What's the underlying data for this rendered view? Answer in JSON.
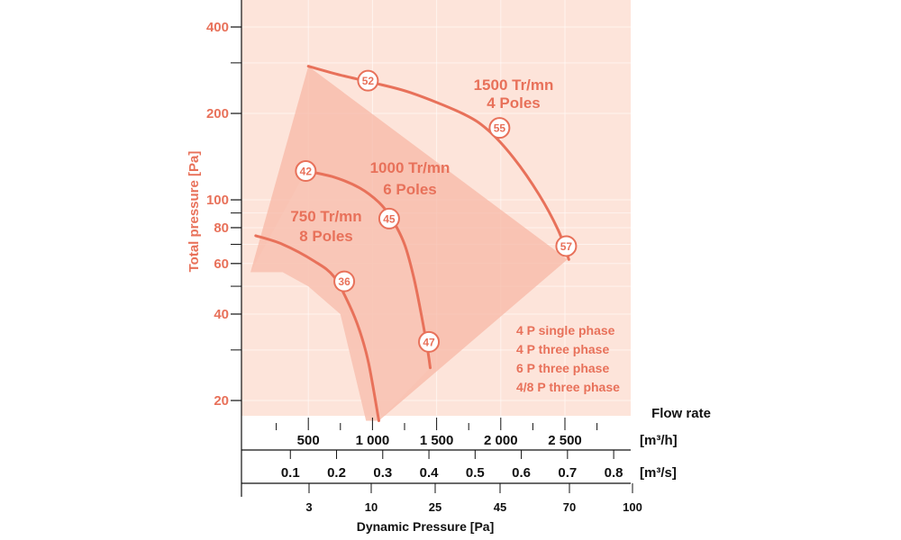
{
  "chart_data": {
    "type": "line",
    "title": "",
    "ylabel": "Total pressure [Pa]",
    "xlabel": "Flow rate",
    "y_scale": "log",
    "ylim": [
      17,
      480
    ],
    "y_ticks": [
      20,
      40,
      60,
      80,
      100,
      200,
      400
    ],
    "y_tick_labels": [
      "20",
      "40",
      "60",
      "80",
      "100",
      "200",
      "400"
    ],
    "x_axes": [
      {
        "unit": "[m³/h]",
        "ticks": [
          500,
          1000,
          1500,
          2000,
          2500
        ],
        "labels": [
          "500",
          "1 000",
          "1 500",
          "2 000",
          "2 500"
        ]
      },
      {
        "unit": "[m³/s]",
        "ticks": [
          0.1,
          0.2,
          0.3,
          0.4,
          0.5,
          0.6,
          0.7,
          0.8
        ],
        "labels": [
          "0.1",
          "0.2",
          "0.3",
          "0.4",
          "0.5",
          "0.6",
          "0.7",
          "0.8"
        ]
      },
      {
        "title": "Dynamic Pressure [Pa]",
        "ticks": [
          3,
          10,
          25,
          45,
          70,
          100
        ],
        "labels": [
          "3",
          "10",
          "25",
          "45",
          "70",
          "100"
        ]
      }
    ],
    "series": [
      {
        "name": "1500 Tr/mn 4 Poles",
        "label_line1": "1500 Tr/mn",
        "label_line2": "4 Poles",
        "x": [
          500,
          750,
          1000,
          1300,
          1700,
          1900,
          2100,
          2300,
          2450,
          2530
        ],
        "y": [
          292,
          272,
          256,
          236,
          200,
          175,
          140,
          104,
          78,
          62
        ],
        "markers": [
          {
            "value": "52",
            "x": 965,
            "y": 260
          },
          {
            "value": "55",
            "x": 1990,
            "y": 178
          },
          {
            "value": "57",
            "x": 2510,
            "y": 69
          }
        ]
      },
      {
        "name": "1000 Tr/mn 6 Poles",
        "label_line1": "1000 Tr/mn",
        "label_line2": "6 Poles",
        "x": [
          480,
          700,
          900,
          1050,
          1150,
          1250,
          1320,
          1380,
          1430,
          1450
        ],
        "y": [
          126,
          120,
          110,
          98,
          86,
          70,
          54,
          40,
          30,
          26
        ],
        "markers": [
          {
            "value": "42",
            "x": 480,
            "y": 126
          },
          {
            "value": "45",
            "x": 1130,
            "y": 86
          },
          {
            "value": "47",
            "x": 1440,
            "y": 32
          }
        ]
      },
      {
        "name": "750 Tr/mn 8 Poles",
        "label_line1": "750 Tr/mn",
        "label_line2": "8 Poles",
        "x": [
          90,
          300,
          550,
          700,
          820,
          900,
          970,
          1050
        ],
        "y": [
          75,
          70,
          61,
          54,
          43,
          35,
          27,
          17
        ],
        "markers": [
          {
            "value": "36",
            "x": 780,
            "y": 52
          }
        ]
      }
    ],
    "envelope": {
      "x": [
        500,
        2520,
        1050,
        950,
        750,
        500,
        300,
        50
      ],
      "y": [
        292,
        62,
        17,
        17,
        40,
        50,
        56,
        56
      ]
    },
    "inner_region": {
      "x": [
        480,
        700,
        1000,
        1250,
        1420,
        1450,
        1050,
        950,
        750,
        500,
        300,
        50
      ],
      "y": [
        126,
        120,
        104,
        70,
        36,
        26,
        17,
        17,
        40,
        50,
        56,
        56
      ]
    },
    "legend": {
      "placement": "bottom-right",
      "entries": [
        "4 P single phase",
        "4 P three phase",
        "6 P three phase",
        "4/8 P three phase"
      ]
    },
    "grid": true
  },
  "colors": {
    "background_fill": "#fde4da",
    "envelope_fill": "#f7b8a6",
    "inner_fill": "#f9c8b9",
    "curve": "#e8715a",
    "text": "#e8715a",
    "axis": "#111111"
  }
}
